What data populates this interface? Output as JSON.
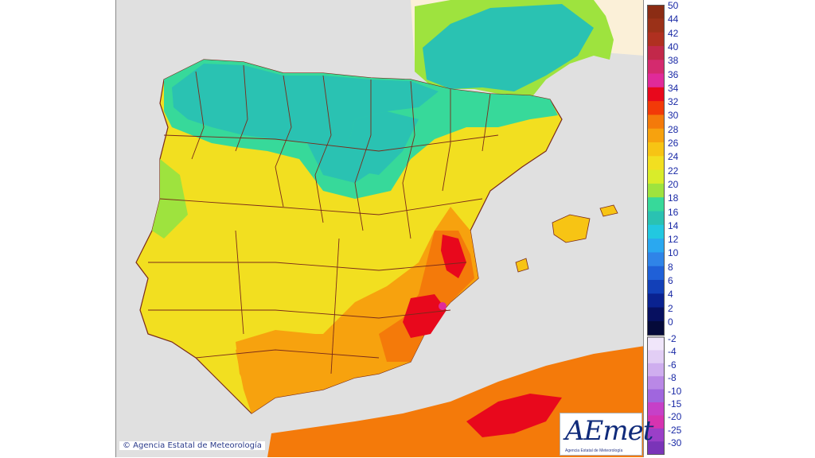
{
  "copyright": "© Agencia Estatal de Meteorología",
  "logo": {
    "text": "AEmet",
    "subtitle": "Agencia Estatal de Meteorología"
  },
  "legend": {
    "positive": [
      "50",
      "44",
      "42",
      "40",
      "38",
      "36",
      "34",
      "32",
      "30",
      "28",
      "26",
      "24",
      "22",
      "20",
      "18",
      "16",
      "14",
      "12",
      "10",
      "8",
      "6",
      "4",
      "2",
      "0"
    ],
    "negative": [
      "-2",
      "-4",
      "-6",
      "-8",
      "-10",
      "-15",
      "-20",
      "-25",
      "-30"
    ],
    "positive_colors": [
      "#8b2c14",
      "#9b3118",
      "#b03020",
      "#c2284a",
      "#d42a6e",
      "#e02a9a",
      "#e8081c",
      "#f23a08",
      "#f47a0a",
      "#f7a20e",
      "#f7c414",
      "#f2df20",
      "#d9ec2a",
      "#9ee33e",
      "#37d99a",
      "#2ac2b2",
      "#22c8e0",
      "#2aa8f0",
      "#2f84e8",
      "#1f60d8",
      "#1240b8",
      "#0a2290",
      "#071060",
      "#050a3a"
    ],
    "negative_colors": [
      "#f0e6fa",
      "#e2cef5",
      "#cfaeef",
      "#b988e6",
      "#a066de",
      "#c640c8",
      "#d633b0",
      "#9a3fc8",
      "#7a34b8"
    ]
  },
  "colors": {
    "sea": "#e0e0e0",
    "france": "#fbf0d8",
    "boundaries": "#7a2a1a",
    "hot": "#f47a0a",
    "warm": "#f2df20",
    "cool": "#37d99a",
    "cold": "#2ac2b2",
    "very_hot": "#e8081c"
  }
}
